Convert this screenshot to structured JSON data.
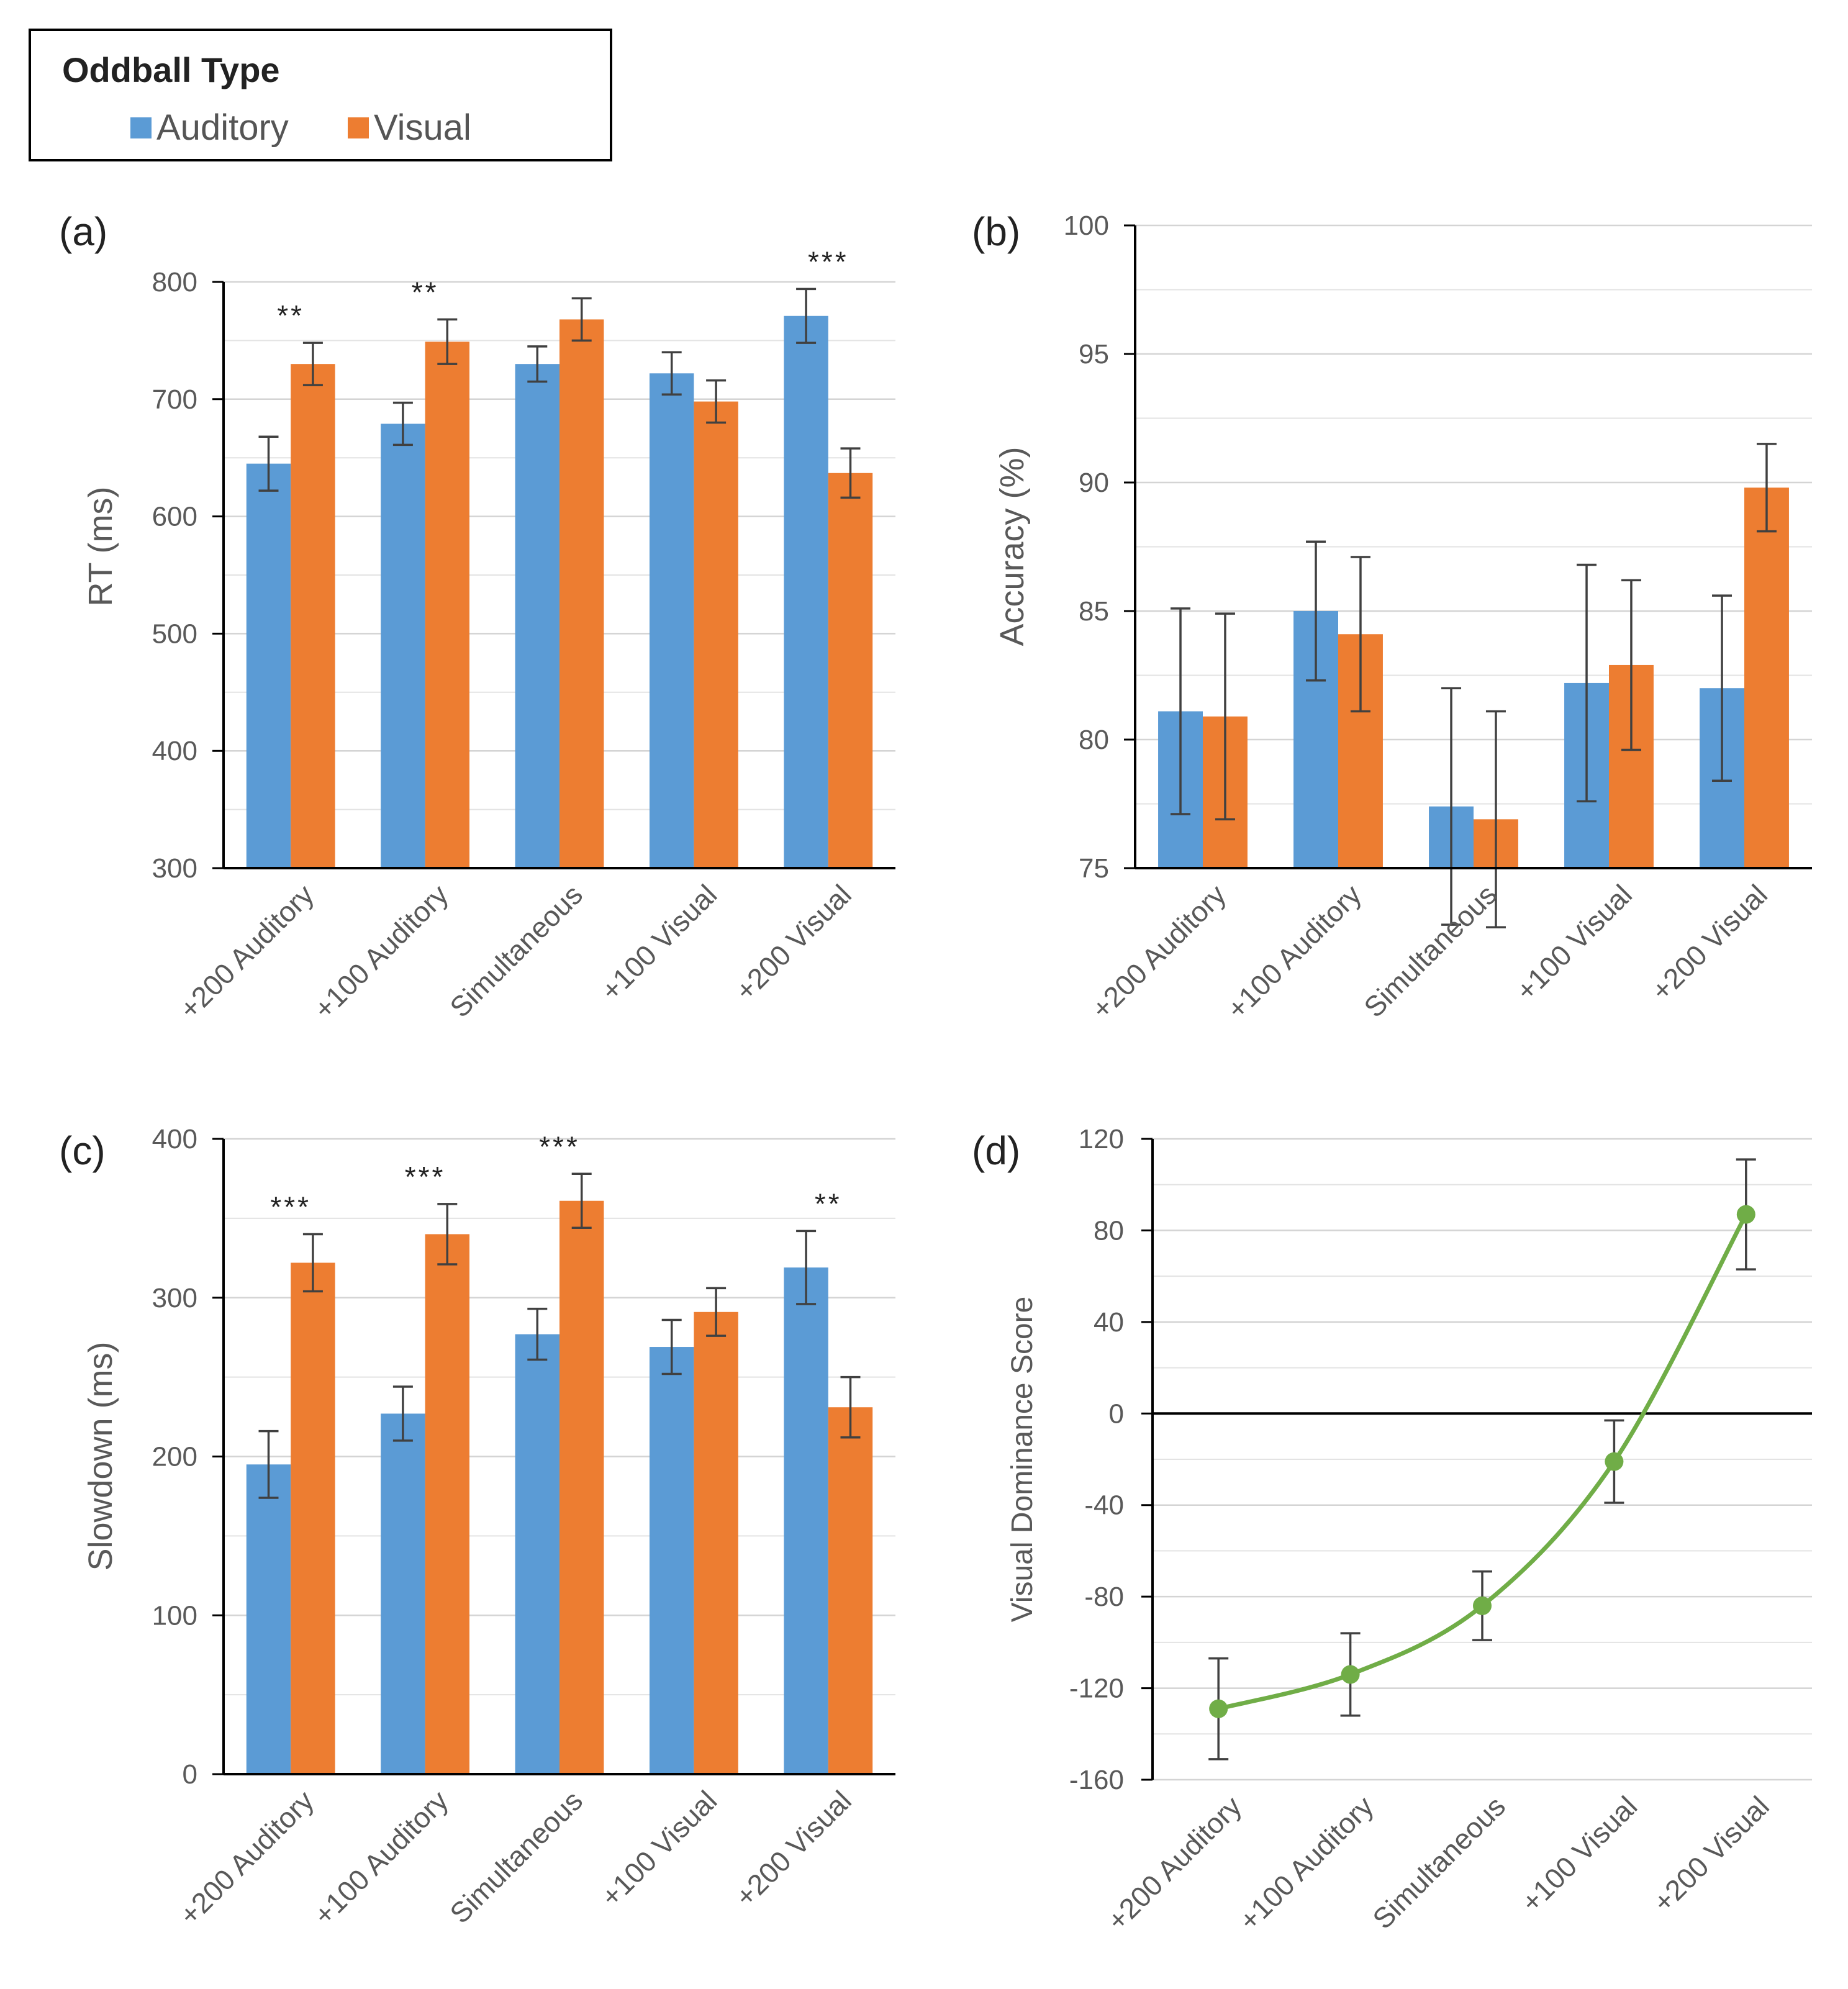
{
  "legend": {
    "title": "Oddball Type",
    "items": [
      {
        "label": "Auditory",
        "color": "#5B9BD5"
      },
      {
        "label": "Visual",
        "color": "#ED7D31"
      }
    ]
  },
  "chart_data": [
    {
      "panel": "(a)",
      "type": "bar",
      "categories": [
        "+200 Auditory",
        "+100 Auditory",
        "Simultaneous",
        "+100 Visual",
        "+200 Visual"
      ],
      "ylabel": "RT (ms)",
      "ylim": [
        300,
        800
      ],
      "yticks": [
        300,
        400,
        500,
        600,
        700,
        800
      ],
      "series": [
        {
          "name": "Auditory",
          "color": "#5B9BD5",
          "values": [
            645,
            679,
            730,
            722,
            771
          ],
          "err": [
            23,
            18,
            15,
            18,
            23
          ]
        },
        {
          "name": "Visual",
          "color": "#ED7D31",
          "values": [
            730,
            749,
            768,
            698,
            637
          ],
          "err": [
            18,
            19,
            18,
            18,
            21
          ]
        }
      ],
      "significance": [
        "**",
        "**",
        "",
        "",
        "***"
      ]
    },
    {
      "panel": "(b)",
      "type": "bar",
      "categories": [
        "+200 Auditory",
        "+100 Auditory",
        "Simultaneous",
        "+100 Visual",
        "+200 Visual"
      ],
      "ylabel": "Accuracy (%)",
      "ylim": [
        75,
        100
      ],
      "yticks": [
        75,
        80,
        85,
        90,
        95,
        100
      ],
      "series": [
        {
          "name": "Auditory",
          "color": "#5B9BD5",
          "values": [
            81.1,
            85.0,
            77.4,
            82.2,
            82.0
          ],
          "err": [
            4.0,
            2.7,
            4.6,
            4.6,
            3.6
          ]
        },
        {
          "name": "Visual",
          "color": "#ED7D31",
          "values": [
            80.9,
            84.1,
            76.9,
            82.9,
            89.8
          ],
          "err": [
            4.0,
            3.0,
            4.2,
            3.3,
            1.7
          ]
        }
      ],
      "significance": [
        "",
        "",
        "",
        "",
        ""
      ]
    },
    {
      "panel": "(c)",
      "type": "bar",
      "categories": [
        "+200 Auditory",
        "+100 Auditory",
        "Simultaneous",
        "+100 Visual",
        "+200 Visual"
      ],
      "ylabel": "Slowdown (ms)",
      "ylim": [
        0,
        400
      ],
      "yticks": [
        0,
        100,
        200,
        300,
        400
      ],
      "series": [
        {
          "name": "Auditory",
          "color": "#5B9BD5",
          "values": [
            195,
            227,
            277,
            269,
            319
          ],
          "err": [
            21,
            17,
            16,
            17,
            23
          ]
        },
        {
          "name": "Visual",
          "color": "#ED7D31",
          "values": [
            322,
            340,
            361,
            291,
            231
          ],
          "err": [
            18,
            19,
            17,
            15,
            19
          ]
        }
      ],
      "significance": [
        "***",
        "***",
        "***",
        "",
        "**"
      ]
    },
    {
      "panel": "(d)",
      "type": "line",
      "categories": [
        "+200 Auditory",
        "+100 Auditory",
        "Simultaneous",
        "+100 Visual",
        "+200 Visual"
      ],
      "ylabel": "Visual Dominance Score",
      "ylim": [
        -160,
        120
      ],
      "yticks": [
        -160,
        -120,
        -80,
        -40,
        0,
        40,
        80,
        120
      ],
      "series": [
        {
          "name": "Visual Dominance Score",
          "color": "#70AD47",
          "values": [
            -129,
            -114,
            -84,
            -21,
            87
          ],
          "err": [
            22,
            18,
            15,
            18,
            24
          ]
        }
      ]
    }
  ]
}
